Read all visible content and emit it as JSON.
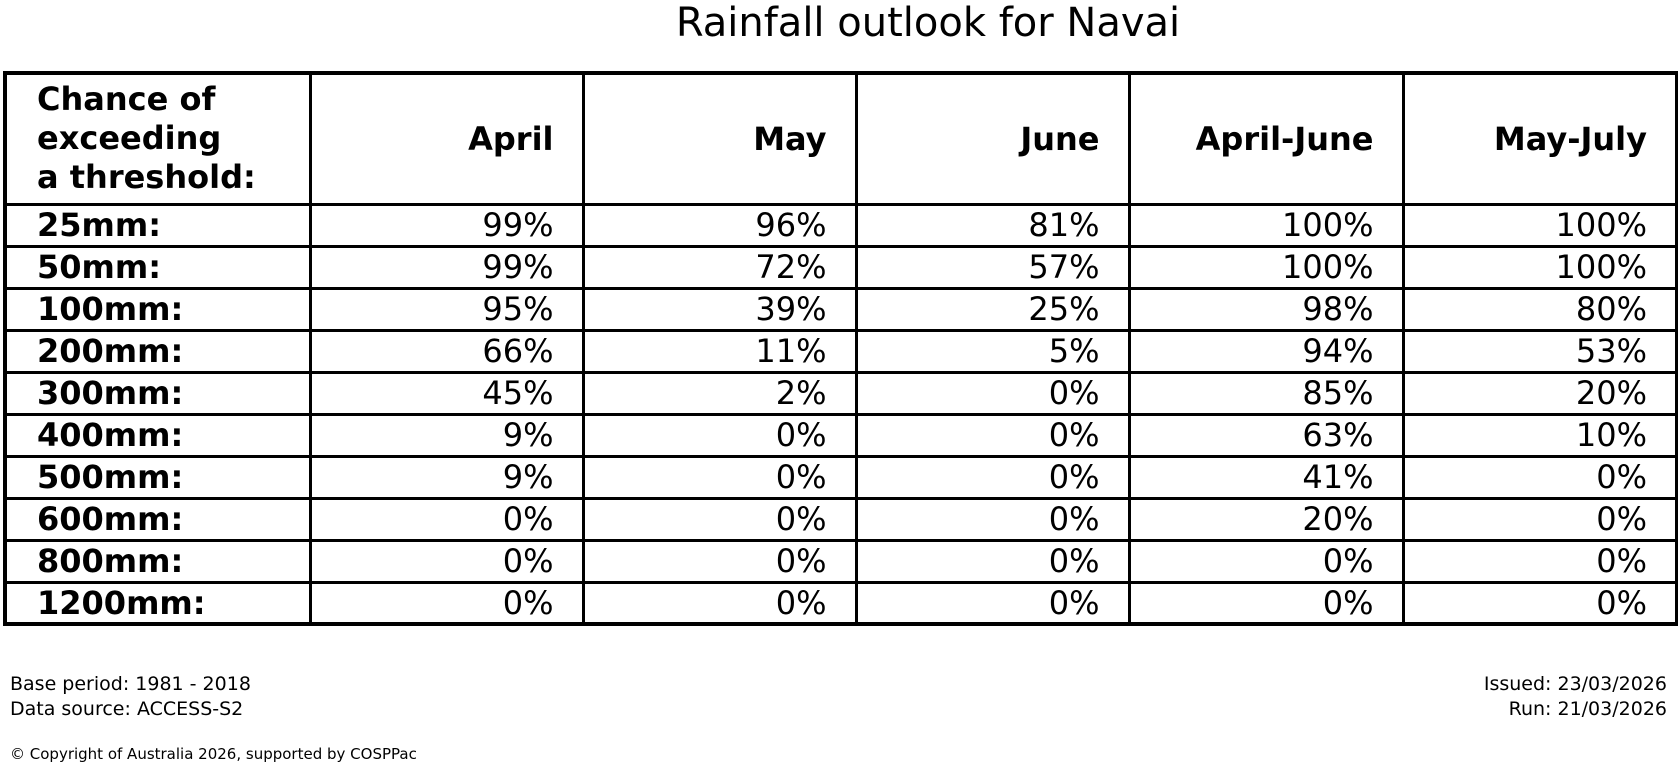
{
  "title": "Rainfall outlook for Navai",
  "table": {
    "corner_lines": [
      "Chance of",
      "exceeding",
      "a threshold:"
    ],
    "columns": [
      "April",
      "May",
      "June",
      "April-June",
      "May-July"
    ],
    "rows": [
      {
        "label": "25mm:",
        "values": [
          "99%",
          "96%",
          "81%",
          "100%",
          "100%"
        ]
      },
      {
        "label": "50mm:",
        "values": [
          "99%",
          "72%",
          "57%",
          "100%",
          "100%"
        ]
      },
      {
        "label": "100mm:",
        "values": [
          "95%",
          "39%",
          "25%",
          "98%",
          "80%"
        ]
      },
      {
        "label": "200mm:",
        "values": [
          "66%",
          "11%",
          "5%",
          "94%",
          "53%"
        ]
      },
      {
        "label": "300mm:",
        "values": [
          "45%",
          "2%",
          "0%",
          "85%",
          "20%"
        ]
      },
      {
        "label": "400mm:",
        "values": [
          "9%",
          "0%",
          "0%",
          "63%",
          "10%"
        ]
      },
      {
        "label": "500mm:",
        "values": [
          "9%",
          "0%",
          "0%",
          "41%",
          "0%"
        ]
      },
      {
        "label": "600mm:",
        "values": [
          "0%",
          "0%",
          "0%",
          "20%",
          "0%"
        ]
      },
      {
        "label": "800mm:",
        "values": [
          "0%",
          "0%",
          "0%",
          "0%",
          "0%"
        ]
      },
      {
        "label": "1200mm:",
        "values": [
          "0%",
          "0%",
          "0%",
          "0%",
          "0%"
        ]
      }
    ]
  },
  "footer": {
    "base_period": "Base period: 1981 - 2018",
    "data_source": "Data source: ACCESS-S2",
    "issued": "Issued: 23/03/2026",
    "run": "Run: 21/03/2026",
    "copyright": "© Copyright of Australia 2026, supported by COSPPac"
  },
  "colors": {
    "text": "#000000",
    "border": "#000000",
    "background": "#ffffff"
  },
  "chart_data": {
    "type": "table",
    "title": "Rainfall outlook for Navai",
    "row_header": "Chance of exceeding a threshold:",
    "columns": [
      "April",
      "May",
      "June",
      "April-June",
      "May-July"
    ],
    "thresholds_mm": [
      25,
      50,
      100,
      200,
      300,
      400,
      500,
      600,
      800,
      1200
    ],
    "values_percent": [
      [
        99,
        96,
        81,
        100,
        100
      ],
      [
        99,
        72,
        57,
        100,
        100
      ],
      [
        95,
        39,
        25,
        98,
        80
      ],
      [
        66,
        11,
        5,
        94,
        53
      ],
      [
        45,
        2,
        0,
        85,
        20
      ],
      [
        9,
        0,
        0,
        63,
        10
      ],
      [
        9,
        0,
        0,
        41,
        0
      ],
      [
        0,
        0,
        0,
        20,
        0
      ],
      [
        0,
        0,
        0,
        0,
        0
      ],
      [
        0,
        0,
        0,
        0,
        0
      ]
    ],
    "base_period": "1981 - 2018",
    "data_source": "ACCESS-S2",
    "issued_date": "23/03/2026",
    "run_date": "21/03/2026"
  }
}
